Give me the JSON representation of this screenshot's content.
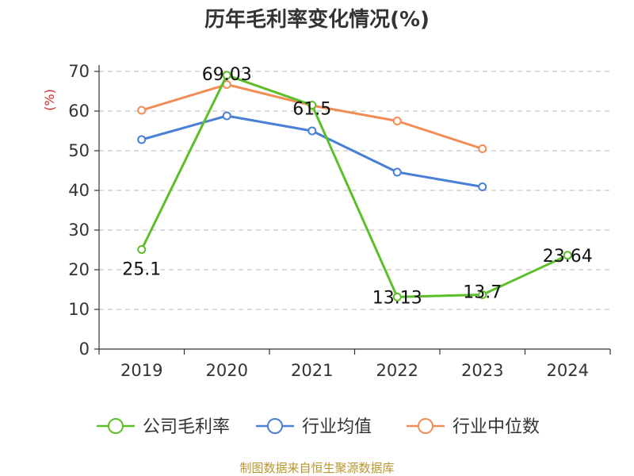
{
  "chart_data": {
    "type": "line",
    "title": "历年毛利率变化情况(%)",
    "ylabel": "(%)",
    "xlabel": "",
    "categories": [
      "2019",
      "2020",
      "2021",
      "2022",
      "2023",
      "2024"
    ],
    "ylim": [
      0,
      70
    ],
    "yticks": [
      0,
      10,
      20,
      30,
      40,
      50,
      60,
      70
    ],
    "grid": true,
    "legend_position": "bottom",
    "series": [
      {
        "name": "公司毛利率",
        "color": "#5cbf2a",
        "values": [
          25.1,
          69.03,
          61.5,
          13.13,
          13.7,
          23.64
        ],
        "labels": [
          "25.1",
          "69.03",
          "61.5",
          "13.13",
          "13.7",
          "23.64"
        ]
      },
      {
        "name": "行业均值",
        "color": "#4a7fd6",
        "values": [
          52.8,
          58.8,
          55.0,
          44.6,
          40.9,
          null
        ]
      },
      {
        "name": "行业中位数",
        "color": "#f28d58",
        "values": [
          60.2,
          66.7,
          61.4,
          57.5,
          50.5,
          null
        ]
      }
    ]
  },
  "source": "制图数据来自恒生聚源数据库"
}
